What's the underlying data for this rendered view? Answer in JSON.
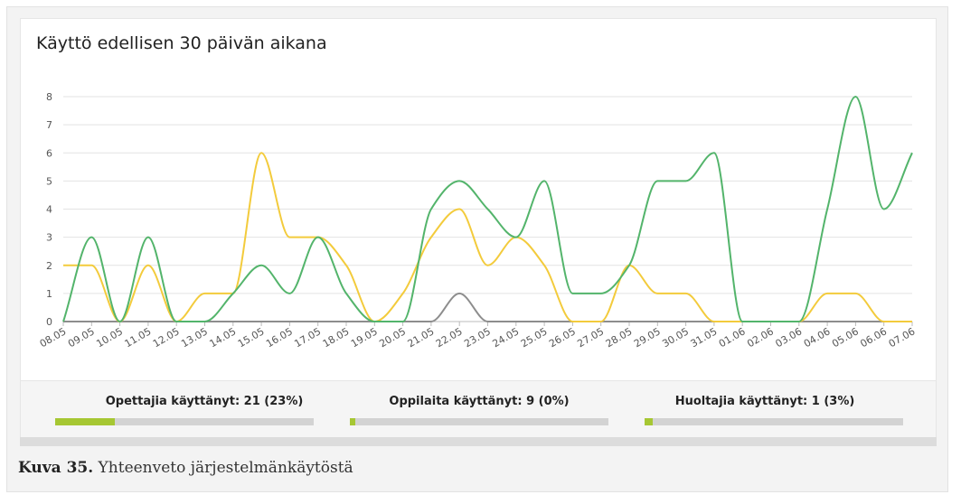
{
  "chart_data": {
    "type": "line",
    "title": "Käyttö edellisen 30 päivän aikana",
    "x": [
      "08.05",
      "09.05",
      "10.05",
      "11.05",
      "12.05",
      "13.05",
      "14.05",
      "15.05",
      "16.05",
      "17.05",
      "18.05",
      "19.05",
      "20.05",
      "21.05",
      "22.05",
      "23.05",
      "24.05",
      "25.05",
      "26.05",
      "27.05",
      "28.05",
      "29.05",
      "30.05",
      "31.05",
      "01.06",
      "02.06",
      "03.06",
      "04.06",
      "05.06",
      "06.06",
      "07.06"
    ],
    "yticks": [
      "0",
      "1",
      "2",
      "3",
      "4",
      "5",
      "6",
      "7",
      "8"
    ],
    "ylim": [
      0,
      8
    ],
    "grid": true,
    "series": [
      {
        "color": "#53b46b",
        "values": [
          0,
          3,
          0,
          3,
          0,
          0,
          1,
          2,
          1,
          3,
          1,
          0,
          0,
          4,
          5,
          4,
          3,
          5,
          1,
          1,
          2,
          5,
          5,
          6,
          0,
          0,
          0,
          4,
          8,
          4,
          6
        ]
      },
      {
        "color": "#f3cb3c",
        "values": [
          2,
          2,
          0,
          2,
          0,
          1,
          1,
          6,
          3,
          3,
          2,
          0,
          1,
          3,
          4,
          2,
          3,
          2,
          0,
          0,
          2,
          1,
          1,
          0,
          0,
          0,
          0,
          1,
          1,
          0,
          0
        ]
      },
      {
        "color": "#8d8d8d",
        "values": [
          0,
          0,
          0,
          0,
          0,
          0,
          0,
          0,
          0,
          0,
          0,
          0,
          0,
          0,
          1,
          0,
          0,
          0,
          0,
          0,
          0,
          0,
          0,
          0,
          0,
          0,
          0,
          0,
          0,
          0,
          0
        ]
      }
    ]
  },
  "stats": [
    {
      "label": "Opettajia käyttänyt: 21 (23%)",
      "fraction": 0.23,
      "color": "#a6c733"
    },
    {
      "label": "Oppilaita käyttänyt: 9 (0%)",
      "fraction": 0.005,
      "color": "#a6c733"
    },
    {
      "label": "Huoltajia käyttänyt: 1 (3%)",
      "fraction": 0.03,
      "color": "#a6c733"
    }
  ],
  "caption": {
    "prefix": "Kuva 35.",
    "text": " Yhteenveto järjestelmänkäytöstä"
  }
}
